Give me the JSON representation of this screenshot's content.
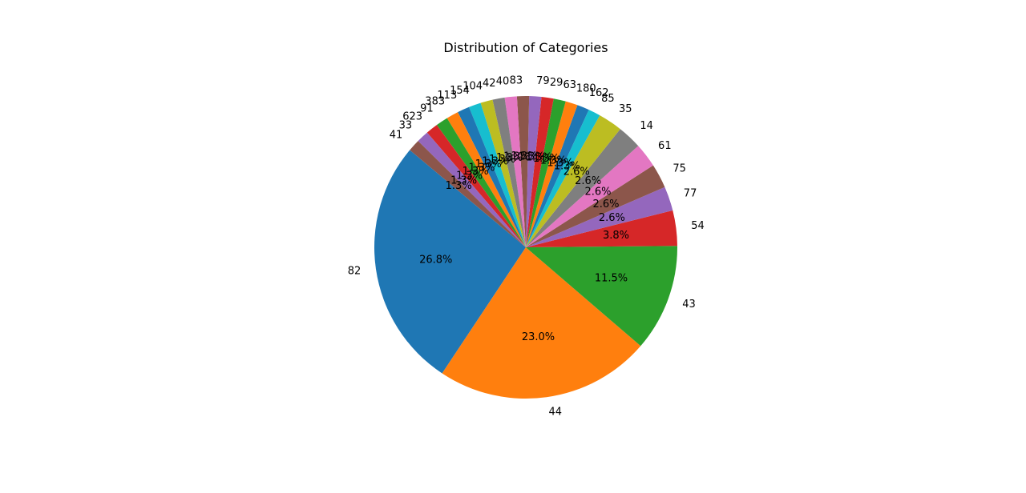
{
  "chart_data": {
    "type": "pie",
    "title": "Distribution of Categories",
    "start_angle_deg": 140,
    "direction": "counterclockwise",
    "autopct_format": "{:.1f}%",
    "slices": [
      {
        "label": "82",
        "value": 26.9,
        "color": "#1f77b4"
      },
      {
        "label": "44",
        "value": 23.1,
        "color": "#ff7f0e"
      },
      {
        "label": "43",
        "value": 11.5,
        "color": "#2ca02c"
      },
      {
        "label": "54",
        "value": 3.8,
        "color": "#d62728"
      },
      {
        "label": "77",
        "value": 2.6,
        "color": "#9467bd"
      },
      {
        "label": "75",
        "value": 2.6,
        "color": "#8c564b"
      },
      {
        "label": "61",
        "value": 2.6,
        "color": "#e377c2"
      },
      {
        "label": "14",
        "value": 2.6,
        "color": "#7f7f7f"
      },
      {
        "label": "35",
        "value": 2.6,
        "color": "#bcbd22"
      },
      {
        "label": "85",
        "value": 1.3,
        "color": "#17becf"
      },
      {
        "label": "162",
        "value": 1.3,
        "color": "#1f77b4"
      },
      {
        "label": "180",
        "value": 1.3,
        "color": "#ff7f0e"
      },
      {
        "label": "63",
        "value": 1.3,
        "color": "#2ca02c"
      },
      {
        "label": "29",
        "value": 1.3,
        "color": "#d62728"
      },
      {
        "label": "79",
        "value": 1.3,
        "color": "#9467bd"
      },
      {
        "label": "83",
        "value": 1.3,
        "color": "#8c564b"
      },
      {
        "label": "40",
        "value": 1.3,
        "color": "#e377c2"
      },
      {
        "label": "42",
        "value": 1.3,
        "color": "#7f7f7f"
      },
      {
        "label": "104",
        "value": 1.3,
        "color": "#bcbd22"
      },
      {
        "label": "154",
        "value": 1.3,
        "color": "#17becf"
      },
      {
        "label": "113",
        "value": 1.3,
        "color": "#1f77b4"
      },
      {
        "label": "383",
        "value": 1.3,
        "color": "#ff7f0e"
      },
      {
        "label": "91",
        "value": 1.3,
        "color": "#2ca02c"
      },
      {
        "label": "623",
        "value": 1.3,
        "color": "#d62728"
      },
      {
        "label": "33",
        "value": 1.3,
        "color": "#9467bd"
      },
      {
        "label": "41",
        "value": 1.3,
        "color": "#8c564b"
      }
    ]
  }
}
